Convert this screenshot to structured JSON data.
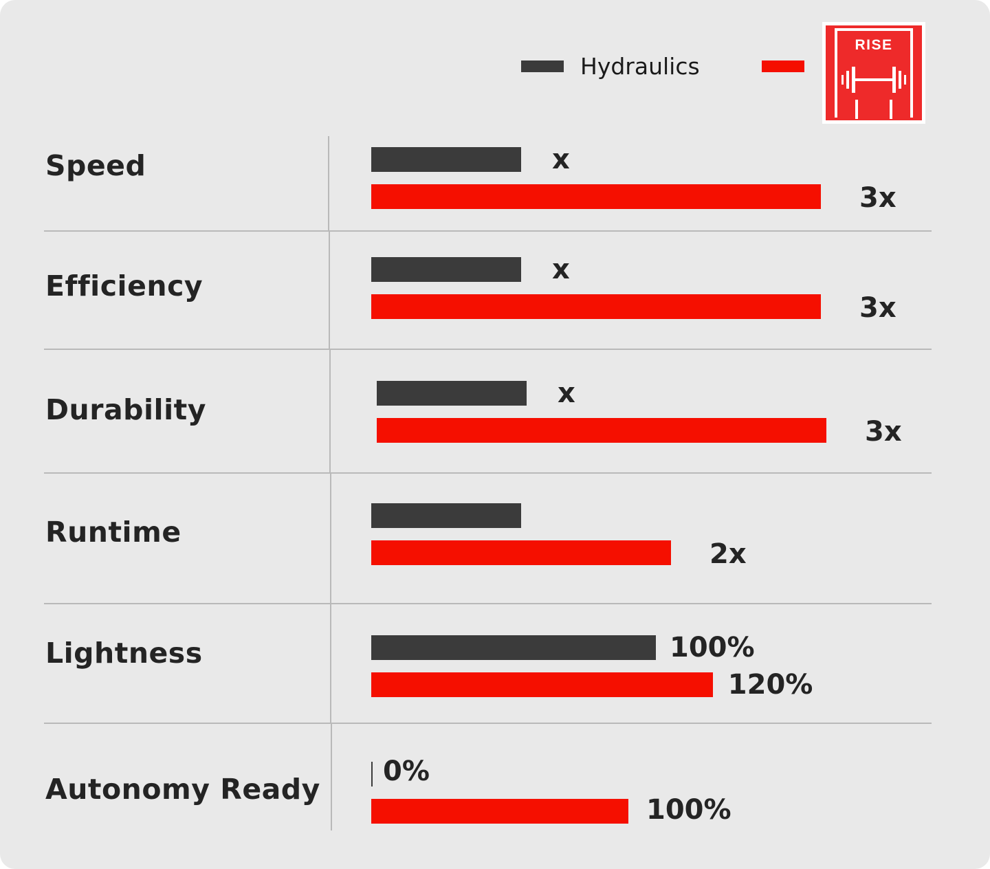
{
  "legend": {
    "series_a_label": "Hydraulics",
    "series_b_logo_text": "RISE"
  },
  "colors": {
    "background": "#e9e9e9",
    "hydraulics": "#3b3b3b",
    "rise": "#f50f00",
    "logo_red": "#ee2a2a"
  },
  "chart_data": {
    "type": "bar",
    "orientation": "horizontal",
    "categories": [
      "Speed",
      "Efficiency",
      "Durability",
      "Runtime",
      "Lightness",
      "Autonomy Ready"
    ],
    "series": [
      {
        "name": "Hydraulics",
        "values": [
          1,
          1,
          1,
          1,
          100,
          0
        ],
        "labels": [
          "x",
          "x",
          "x",
          "",
          "100%",
          "0%"
        ]
      },
      {
        "values": [
          3,
          3,
          3,
          2,
          120,
          100
        ],
        "labels": [
          "3x",
          "3x",
          "3x",
          "2x",
          "120%",
          "100%"
        ]
      }
    ]
  }
}
